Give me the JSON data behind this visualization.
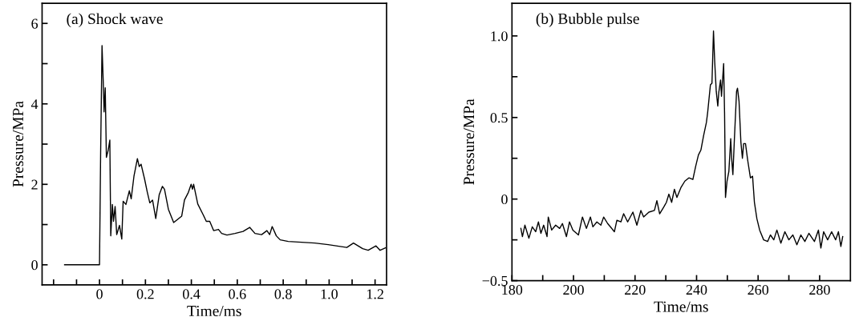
{
  "chart_data": [
    {
      "type": "line",
      "title": "(a) Shock wave",
      "xlabel": "Time/ms",
      "ylabel": "Pressure/MPa",
      "xlim": [
        -0.25,
        1.25
      ],
      "ylim": [
        -0.5,
        6.5
      ],
      "xticks": [
        {
          "value": -0.2,
          "label": null
        },
        {
          "value": -0.1,
          "label": null
        },
        0,
        {
          "value": 0.1,
          "label": null
        },
        0.2,
        {
          "value": 0.3,
          "label": null
        },
        0.4,
        {
          "value": 0.5,
          "label": null
        },
        0.6,
        {
          "value": 0.7,
          "label": null
        },
        0.8,
        {
          "value": 0.9,
          "label": null
        },
        {
          "value": 1.0,
          "label": "1.0"
        },
        {
          "value": 1.1,
          "label": null
        },
        1.2
      ],
      "yticks": [
        0,
        {
          "value": 1,
          "label": null
        },
        2,
        {
          "value": 3,
          "label": null
        },
        4,
        {
          "value": 5,
          "label": null
        },
        6
      ],
      "grid": false,
      "series": [
        {
          "color": "#000000",
          "x": [
            -0.152,
            0,
            0.005,
            0.011,
            0.016,
            0.02,
            0.025,
            0.03,
            0.038,
            0.045,
            0.049,
            0.056,
            0.061,
            0.068,
            0.075,
            0.087,
            0.097,
            0.103,
            0.115,
            0.13,
            0.138,
            0.15,
            0.165,
            0.173,
            0.181,
            0.196,
            0.208,
            0.219,
            0.231,
            0.245,
            0.26,
            0.274,
            0.283,
            0.3,
            0.323,
            0.358,
            0.37,
            0.387,
            0.399,
            0.405,
            0.41,
            0.428,
            0.451,
            0.465,
            0.48,
            0.497,
            0.518,
            0.532,
            0.555,
            0.59,
            0.625,
            0.654,
            0.677,
            0.706,
            0.729,
            0.741,
            0.752,
            0.77,
            0.787,
            0.822,
            0.88,
            0.938,
            0.996,
            1.054,
            1.077,
            1.106,
            1.146,
            1.17,
            1.204,
            1.222,
            1.245
          ],
          "values": [
            0,
            0,
            2.8,
            5.45,
            4.6,
            3.8,
            4.4,
            2.67,
            2.85,
            3.1,
            0.72,
            1.5,
            1.08,
            1.45,
            0.75,
            0.98,
            0.64,
            1.58,
            1.5,
            1.84,
            1.64,
            2.2,
            2.64,
            2.44,
            2.5,
            2.14,
            1.81,
            1.54,
            1.61,
            1.15,
            1.74,
            1.95,
            1.88,
            1.38,
            1.05,
            1.21,
            1.61,
            1.8,
            2.0,
            1.88,
            2.0,
            1.51,
            1.25,
            1.08,
            1.08,
            0.85,
            0.88,
            0.78,
            0.74,
            0.78,
            0.83,
            0.93,
            0.78,
            0.75,
            0.85,
            0.75,
            0.95,
            0.72,
            0.62,
            0.58,
            0.56,
            0.54,
            0.5,
            0.45,
            0.43,
            0.54,
            0.4,
            0.36,
            0.47,
            0.36,
            0.42
          ]
        }
      ]
    },
    {
      "type": "line",
      "title": "(b) Bubble pulse",
      "xlabel": "Time/ms",
      "ylabel": "Pressure/MPa",
      "xlim": [
        180,
        290
      ],
      "ylim": [
        -0.5,
        1.2
      ],
      "xticks": [
        180,
        {
          "value": 190,
          "label": null
        },
        200,
        {
          "value": 210,
          "label": null
        },
        220,
        {
          "value": 230,
          "label": null
        },
        240,
        {
          "value": 250,
          "label": null
        },
        260,
        {
          "value": 270,
          "label": null
        },
        280
      ],
      "yticks": [
        {
          "value": -0.5,
          "label": "−0.5"
        },
        {
          "value": -0.25,
          "label": null
        },
        0,
        {
          "value": 0.25,
          "label": null
        },
        0.5,
        {
          "value": 0.75,
          "label": null
        },
        {
          "value": 1.0,
          "label": "1.0"
        }
      ],
      "grid": false,
      "series": [
        {
          "color": "#000000",
          "x": [
            182.9,
            183.4,
            184.2,
            185.5,
            186.6,
            187.7,
            188.6,
            189.4,
            190.3,
            191.4,
            191.8,
            192.9,
            194.2,
            195.5,
            196.4,
            197.7,
            198.7,
            199.8,
            201.6,
            202.9,
            204.2,
            205.5,
            206.3,
            207.6,
            208.9,
            209.8,
            211.1,
            213.3,
            214.1,
            215.4,
            216.3,
            217.6,
            219.3,
            220.6,
            221.9,
            222.8,
            224.5,
            226.3,
            227.1,
            228.0,
            229.3,
            230.2,
            231.0,
            231.9,
            232.8,
            233.6,
            234.9,
            236.2,
            237.5,
            238.8,
            239.7,
            240.6,
            241.4,
            242.3,
            243.2,
            243.6,
            244.5,
            245.0,
            245.5,
            245.9,
            246.4,
            246.9,
            247.2,
            247.8,
            248.1,
            248.8,
            249.1,
            249.4,
            249.9,
            250.5,
            251.1,
            251.4,
            251.8,
            252.3,
            253.0,
            253.3,
            253.8,
            254.4,
            254.9,
            255.3,
            255.9,
            256.6,
            257.5,
            258.2,
            258.8,
            259.6,
            260.5,
            261.8,
            263.1,
            264.0,
            265.1,
            266.1,
            267.4,
            268.7,
            270.0,
            271.3,
            272.6,
            273.9,
            275.2,
            276.5,
            278.3,
            279.6,
            280.4,
            281.3,
            282.6,
            283.9,
            285.2,
            286.1,
            286.9,
            287.5
          ],
          "values": [
            -0.18,
            -0.23,
            -0.16,
            -0.24,
            -0.17,
            -0.2,
            -0.14,
            -0.21,
            -0.16,
            -0.23,
            -0.11,
            -0.19,
            -0.16,
            -0.18,
            -0.15,
            -0.23,
            -0.14,
            -0.19,
            -0.22,
            -0.11,
            -0.18,
            -0.11,
            -0.17,
            -0.14,
            -0.16,
            -0.11,
            -0.15,
            -0.2,
            -0.13,
            -0.14,
            -0.09,
            -0.14,
            -0.08,
            -0.16,
            -0.07,
            -0.11,
            -0.08,
            -0.07,
            -0.01,
            -0.09,
            -0.05,
            -0.02,
            0.03,
            -0.02,
            0.06,
            0.01,
            0.07,
            0.11,
            0.13,
            0.12,
            0.2,
            0.27,
            0.3,
            0.39,
            0.47,
            0.53,
            0.7,
            0.71,
            1.03,
            0.84,
            0.66,
            0.57,
            0.65,
            0.73,
            0.63,
            0.83,
            0.53,
            0.01,
            0.11,
            0.17,
            0.37,
            0.25,
            0.15,
            0.37,
            0.66,
            0.68,
            0.6,
            0.35,
            0.25,
            0.34,
            0.34,
            0.24,
            0.13,
            0.14,
            -0.02,
            -0.12,
            -0.19,
            -0.25,
            -0.26,
            -0.22,
            -0.25,
            -0.19,
            -0.27,
            -0.2,
            -0.25,
            -0.22,
            -0.28,
            -0.22,
            -0.26,
            -0.21,
            -0.26,
            -0.19,
            -0.3,
            -0.2,
            -0.25,
            -0.2,
            -0.25,
            -0.2,
            -0.29,
            -0.23
          ]
        }
      ]
    }
  ]
}
